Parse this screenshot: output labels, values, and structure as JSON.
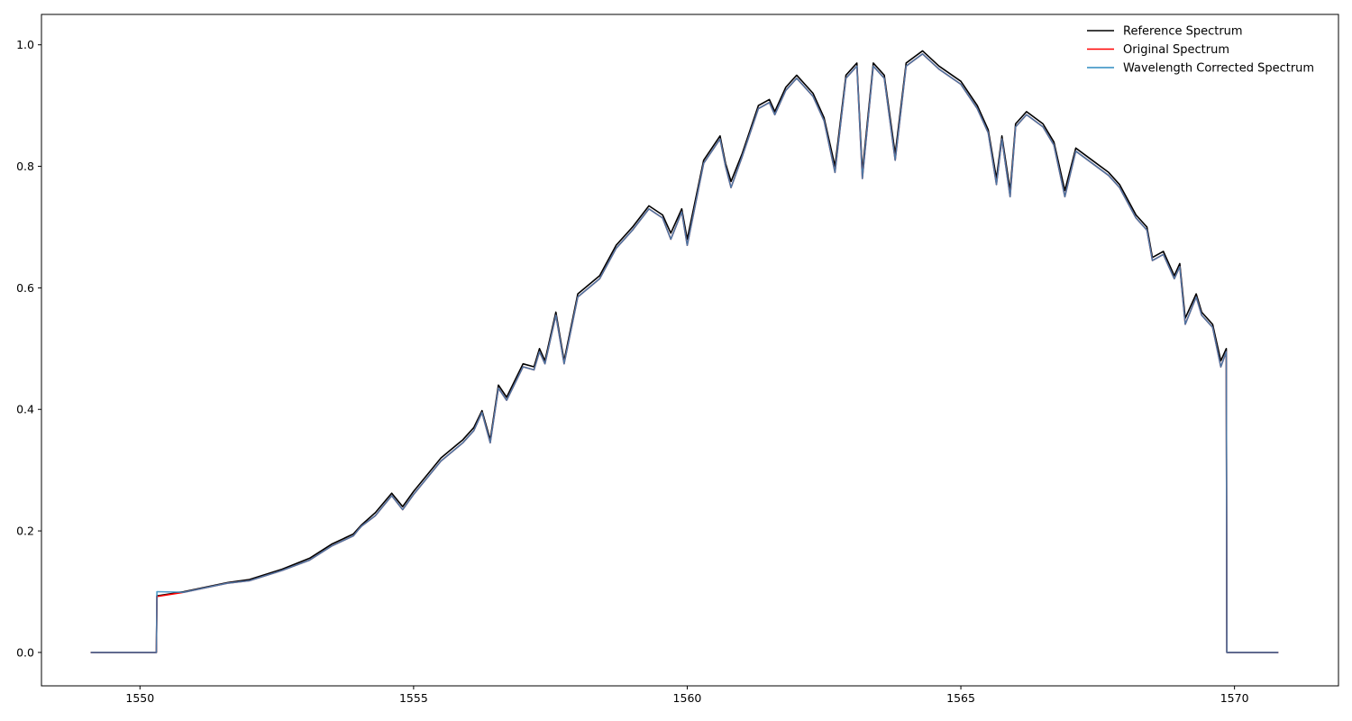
{
  "chart_data": {
    "type": "line",
    "title": "",
    "xlabel": "",
    "ylabel": "",
    "xlim": [
      1548.2,
      1571.9
    ],
    "ylim": [
      -0.055,
      1.05
    ],
    "xticks": [
      1550,
      1555,
      1560,
      1565,
      1570
    ],
    "yticks": [
      0.0,
      0.2,
      0.4,
      0.6,
      0.8,
      1.0
    ],
    "xtick_labels": [
      "1550",
      "1555",
      "1560",
      "1565",
      "1570"
    ],
    "ytick_labels": [
      "0.0",
      "0.2",
      "0.4",
      "0.6",
      "0.8",
      "1.0"
    ],
    "grid": false,
    "legend_position": "top-right",
    "x": [
      1549.1,
      1550.3,
      1550.31,
      1550.8,
      1551.6,
      1552.0,
      1552.6,
      1553.1,
      1553.5,
      1553.9,
      1554.0,
      1554.05,
      1554.3,
      1554.6,
      1554.8,
      1555.0,
      1555.5,
      1555.9,
      1556.1,
      1556.25,
      1556.4,
      1556.55,
      1556.7,
      1557.0,
      1557.2,
      1557.3,
      1557.4,
      1557.6,
      1557.75,
      1558.0,
      1558.4,
      1558.7,
      1559.0,
      1559.3,
      1559.55,
      1559.7,
      1559.9,
      1560.0,
      1560.3,
      1560.6,
      1560.7,
      1560.8,
      1561.0,
      1561.3,
      1561.5,
      1561.6,
      1561.8,
      1562.0,
      1562.3,
      1562.5,
      1562.7,
      1562.9,
      1563.1,
      1563.2,
      1563.4,
      1563.6,
      1563.8,
      1564.0,
      1564.3,
      1564.6,
      1565.0,
      1565.3,
      1565.5,
      1565.65,
      1565.75,
      1565.9,
      1566.0,
      1566.2,
      1566.5,
      1566.7,
      1566.9,
      1567.1,
      1567.4,
      1567.7,
      1567.9,
      1568.2,
      1568.4,
      1568.5,
      1568.7,
      1568.9,
      1569.0,
      1569.1,
      1569.3,
      1569.4,
      1569.6,
      1569.75,
      1569.85,
      1569.86,
      1570.1,
      1570.8
    ],
    "series": [
      {
        "name": "Reference Spectrum",
        "color": "#000000",
        "values": [
          0.0,
          0.0,
          0.093,
          0.1,
          0.115,
          0.12,
          0.137,
          0.155,
          0.178,
          0.195,
          0.205,
          0.21,
          0.23,
          0.262,
          0.24,
          0.265,
          0.32,
          0.35,
          0.37,
          0.398,
          0.35,
          0.44,
          0.42,
          0.475,
          0.47,
          0.5,
          0.48,
          0.56,
          0.48,
          0.59,
          0.62,
          0.67,
          0.7,
          0.735,
          0.72,
          0.69,
          0.73,
          0.68,
          0.81,
          0.85,
          0.805,
          0.775,
          0.82,
          0.9,
          0.91,
          0.89,
          0.93,
          0.95,
          0.92,
          0.88,
          0.8,
          0.95,
          0.97,
          0.79,
          0.97,
          0.95,
          0.82,
          0.97,
          0.99,
          0.965,
          0.94,
          0.9,
          0.86,
          0.78,
          0.85,
          0.76,
          0.87,
          0.89,
          0.87,
          0.84,
          0.76,
          0.83,
          0.81,
          0.79,
          0.77,
          0.72,
          0.7,
          0.65,
          0.66,
          0.62,
          0.64,
          0.55,
          0.59,
          0.56,
          0.54,
          0.48,
          0.5,
          0.0,
          0.0,
          0.0
        ]
      },
      {
        "name": "Original Spectrum",
        "color": "#ff0000",
        "values": [
          0.0,
          0.0,
          0.092,
          0.099,
          0.114,
          0.118,
          0.135,
          0.152,
          0.175,
          0.192,
          0.203,
          0.208,
          0.225,
          0.258,
          0.235,
          0.26,
          0.315,
          0.345,
          0.365,
          0.395,
          0.345,
          0.435,
          0.415,
          0.47,
          0.465,
          0.495,
          0.475,
          0.555,
          0.475,
          0.585,
          0.615,
          0.665,
          0.695,
          0.73,
          0.715,
          0.68,
          0.725,
          0.67,
          0.805,
          0.845,
          0.8,
          0.765,
          0.815,
          0.895,
          0.905,
          0.885,
          0.925,
          0.945,
          0.915,
          0.875,
          0.79,
          0.945,
          0.965,
          0.78,
          0.965,
          0.945,
          0.81,
          0.965,
          0.985,
          0.96,
          0.935,
          0.895,
          0.855,
          0.77,
          0.845,
          0.75,
          0.865,
          0.885,
          0.865,
          0.835,
          0.75,
          0.825,
          0.805,
          0.785,
          0.765,
          0.715,
          0.695,
          0.645,
          0.655,
          0.615,
          0.635,
          0.54,
          0.585,
          0.555,
          0.535,
          0.47,
          0.495,
          0.0,
          0.0,
          0.0
        ]
      },
      {
        "name": "Wavelength Corrected Spectrum",
        "color": "#2e8bc0",
        "values": [
          0.0,
          0.0,
          0.1,
          0.099,
          0.114,
          0.118,
          0.135,
          0.152,
          0.175,
          0.192,
          0.203,
          0.208,
          0.225,
          0.258,
          0.235,
          0.26,
          0.315,
          0.345,
          0.365,
          0.395,
          0.345,
          0.435,
          0.415,
          0.47,
          0.465,
          0.495,
          0.475,
          0.555,
          0.475,
          0.585,
          0.615,
          0.665,
          0.695,
          0.73,
          0.715,
          0.68,
          0.725,
          0.67,
          0.805,
          0.845,
          0.8,
          0.765,
          0.815,
          0.895,
          0.905,
          0.885,
          0.925,
          0.945,
          0.915,
          0.875,
          0.79,
          0.945,
          0.965,
          0.78,
          0.965,
          0.945,
          0.81,
          0.965,
          0.985,
          0.96,
          0.935,
          0.895,
          0.855,
          0.77,
          0.845,
          0.75,
          0.865,
          0.885,
          0.865,
          0.835,
          0.75,
          0.825,
          0.805,
          0.785,
          0.765,
          0.715,
          0.695,
          0.645,
          0.655,
          0.615,
          0.635,
          0.54,
          0.585,
          0.555,
          0.535,
          0.47,
          0.495,
          0.0,
          0.0,
          0.0
        ]
      }
    ]
  }
}
